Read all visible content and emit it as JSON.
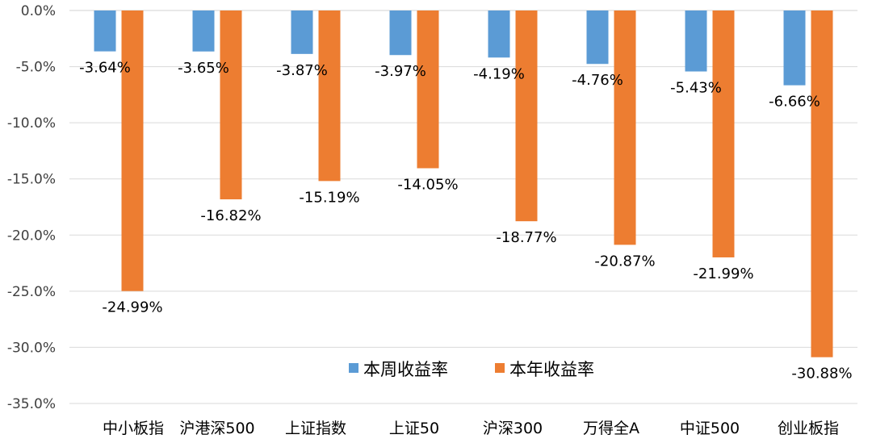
{
  "chart_data": {
    "type": "bar",
    "categories": [
      "中小板指",
      "沪港深500",
      "上证指数",
      "上证50",
      "沪深300",
      "万得全A",
      "中证500",
      "创业板指"
    ],
    "series": [
      {
        "name": "本周收益率",
        "color": "#5B9BD5",
        "values": [
          -3.64,
          -3.65,
          -3.87,
          -3.97,
          -4.19,
          -4.76,
          -5.43,
          -6.66
        ],
        "labels": [
          "-3.64%",
          "-3.65%",
          "-3.87%",
          "-3.97%",
          "-4.19%",
          "-4.76%",
          "-5.43%",
          "-6.66%"
        ]
      },
      {
        "name": "本年收益率",
        "color": "#ED7D31",
        "values": [
          -24.99,
          -16.82,
          -15.19,
          -14.05,
          -18.77,
          -20.87,
          -21.99,
          -30.88
        ],
        "labels": [
          "-24.99%",
          "-16.82%",
          "-15.19%",
          "-14.05%",
          "-18.77%",
          "-20.87%",
          "-21.99%",
          "-30.88%"
        ]
      }
    ],
    "yticks": [
      "0.0%",
      "-5.0%",
      "-10.0%",
      "-15.0%",
      "-20.0%",
      "-25.0%",
      "-30.0%",
      "-35.0%"
    ],
    "ylim": [
      -35,
      0
    ],
    "grid": true,
    "legend_position": "bottom-center-inside"
  }
}
